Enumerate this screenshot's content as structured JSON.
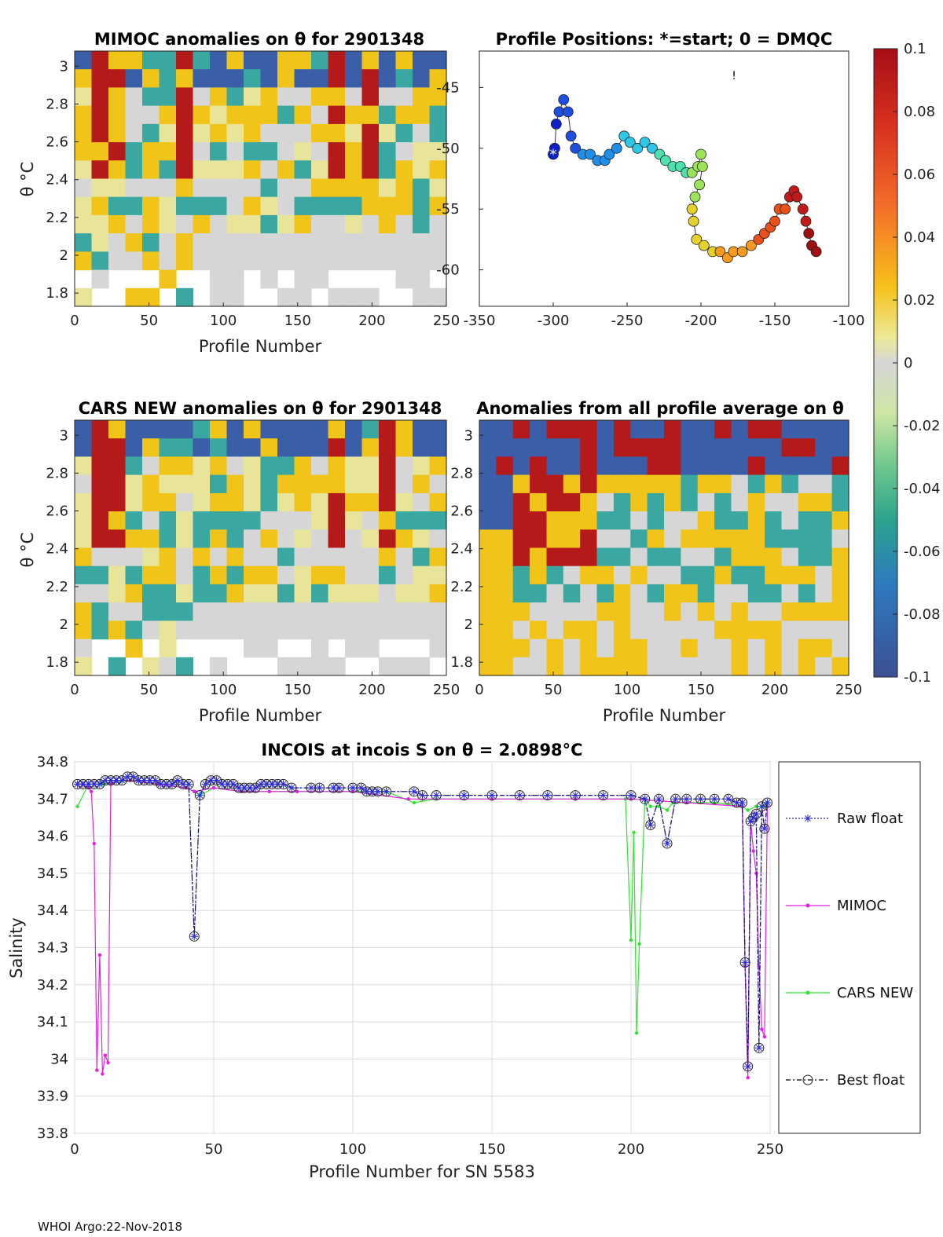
{
  "footer": "WHOI Argo:22-Nov-2018",
  "colors": {
    "high": "#b51a1a",
    "mid_high": "#f0c419",
    "zero": "#d6d6d6",
    "mid_low": "#3aa7a0",
    "low": "#3b5ea8",
    "raw": "#2a2ae0",
    "mimoc": "#e61ee6",
    "cars": "#2ee62e",
    "best": "#000000"
  },
  "chart_data": [
    {
      "id": "mimoc",
      "type": "heatmap",
      "title": "MIMOC anomalies on θ  for 2901348",
      "xlabel": "Profile Number",
      "ylabel": "θ °C",
      "xlim": [
        0,
        250
      ],
      "ylim": [
        1.73,
        3.08
      ],
      "xticks": [
        "0",
        "50",
        "100",
        "150",
        "200",
        "250"
      ],
      "yticks": [
        "1.8",
        "2",
        "2.2",
        "2.4",
        "2.6",
        "2.8",
        "3"
      ]
    },
    {
      "id": "positions",
      "type": "scatter",
      "title": "Profile Positions: *=start; 0 = DMQC",
      "xlim": [
        -350,
        -100
      ],
      "ylim": [
        -63,
        -42
      ],
      "xticks": [
        "-350",
        "-300",
        "-250",
        "-200",
        "-150",
        "-100"
      ],
      "yticks": [
        "-45",
        "-50",
        "-55",
        "-60"
      ],
      "track": [
        [
          -300,
          -50.5
        ],
        [
          -299,
          -50
        ],
        [
          -298,
          -48
        ],
        [
          -296,
          -47
        ],
        [
          -293,
          -46
        ],
        [
          -290,
          -47
        ],
        [
          -288,
          -49
        ],
        [
          -285,
          -50
        ],
        [
          -280,
          -50.5
        ],
        [
          -275,
          -50.5
        ],
        [
          -270,
          -51
        ],
        [
          -265,
          -51
        ],
        [
          -262,
          -50.5
        ],
        [
          -257,
          -50
        ],
        [
          -252,
          -49
        ],
        [
          -248,
          -49.5
        ],
        [
          -243,
          -50
        ],
        [
          -238,
          -49.5
        ],
        [
          -233,
          -50
        ],
        [
          -228,
          -50.5
        ],
        [
          -224,
          -51
        ],
        [
          -219,
          -51.5
        ],
        [
          -214,
          -51.5
        ],
        [
          -210,
          -52
        ],
        [
          -206,
          -52
        ],
        [
          -202,
          -51.5
        ],
        [
          -200,
          -50.5
        ],
        [
          -199,
          -51.5
        ],
        [
          -201,
          -53
        ],
        [
          -204,
          -54
        ],
        [
          -206,
          -55
        ],
        [
          -205,
          -56
        ],
        [
          -203,
          -57.5
        ],
        [
          -198,
          -58
        ],
        [
          -192,
          -58.5
        ],
        [
          -187,
          -58.5
        ],
        [
          -182,
          -59
        ],
        [
          -178,
          -58.5
        ],
        [
          -172,
          -58.5
        ],
        [
          -166,
          -58
        ],
        [
          -161,
          -57.5
        ],
        [
          -157,
          -57
        ],
        [
          -153,
          -56.5
        ],
        [
          -150,
          -56
        ],
        [
          -147,
          -55
        ],
        [
          -143,
          -55
        ],
        [
          -140,
          -54
        ],
        [
          -137,
          -53.5
        ],
        [
          -135,
          -54
        ],
        [
          -131,
          -55
        ],
        [
          -129,
          -56
        ],
        [
          -127,
          -57
        ],
        [
          -125,
          -58
        ],
        [
          -122,
          -58.5
        ]
      ],
      "colorbar": {
        "ticks": [
          "0.1",
          "0.08",
          "0.06",
          "0.04",
          "0.02",
          "0",
          "-0.02",
          "-0.04",
          "-0.06",
          "-0.08",
          "-0.1"
        ]
      }
    },
    {
      "id": "cars",
      "type": "heatmap",
      "title": "CARS NEW anomalies on θ for 2901348",
      "xlabel": "Profile Number",
      "ylabel": "θ °C",
      "xlim": [
        0,
        250
      ],
      "ylim": [
        1.73,
        3.08
      ],
      "xticks": [
        "0",
        "50",
        "100",
        "150",
        "200",
        "250"
      ],
      "yticks": [
        "1.8",
        "2",
        "2.2",
        "2.4",
        "2.6",
        "2.8",
        "3"
      ]
    },
    {
      "id": "allavg",
      "type": "heatmap",
      "title": "Anomalies from all profile average on θ",
      "xlabel": "Profile Number",
      "xlim": [
        0,
        250
      ],
      "ylim": [
        1.73,
        3.08
      ],
      "xticks": [
        "0",
        "50",
        "100",
        "150",
        "200",
        "250"
      ],
      "yticks": [
        "1.8",
        "2",
        "2.2",
        "2.4",
        "2.6",
        "2.8",
        "3"
      ]
    },
    {
      "id": "salinity",
      "type": "line",
      "title_main": "INCOIS at incois S on θ = 2.0898",
      "title_unit": "°C",
      "xlabel": "Profile Number for SN 5583",
      "ylabel": "Salinity",
      "xlim": [
        0,
        250
      ],
      "ylim": [
        33.8,
        34.8
      ],
      "xticks": [
        "0",
        "50",
        "100",
        "150",
        "200",
        "250"
      ],
      "yticks": [
        "33.8",
        "33.9",
        "34",
        "34.1",
        "34.2",
        "34.3",
        "34.4",
        "34.5",
        "34.6",
        "34.7",
        "34.8"
      ],
      "legend": [
        "Raw float",
        "MIMOC",
        "CARS NEW",
        "Best float"
      ],
      "series": [
        {
          "name": "Raw float",
          "x": [
            1,
            3,
            5,
            7,
            9,
            11,
            13,
            15,
            17,
            19,
            21,
            23,
            25,
            27,
            29,
            31,
            33,
            35,
            37,
            39,
            41,
            43,
            45,
            47,
            49,
            51,
            53,
            55,
            57,
            59,
            61,
            63,
            65,
            67,
            69,
            71,
            73,
            75,
            78,
            85,
            88,
            93,
            95,
            100,
            103,
            105,
            107,
            109,
            112,
            122,
            125,
            130,
            140,
            150,
            160,
            170,
            180,
            190,
            200,
            205,
            207,
            210,
            213,
            216,
            220,
            225,
            230,
            235,
            238,
            240,
            241,
            242,
            243,
            244,
            245,
            246,
            247,
            248,
            249
          ],
          "y": [
            34.74,
            34.74,
            34.74,
            34.74,
            34.74,
            34.75,
            34.75,
            34.75,
            34.75,
            34.76,
            34.76,
            34.75,
            34.75,
            34.75,
            34.75,
            34.74,
            34.74,
            34.74,
            34.75,
            34.74,
            34.74,
            34.33,
            34.71,
            34.74,
            34.75,
            34.75,
            34.74,
            34.74,
            34.74,
            34.73,
            34.73,
            34.73,
            34.73,
            34.74,
            34.74,
            34.74,
            34.74,
            34.74,
            34.73,
            34.73,
            34.73,
            34.73,
            34.73,
            34.73,
            34.73,
            34.72,
            34.72,
            34.72,
            34.72,
            34.72,
            34.71,
            34.71,
            34.71,
            34.71,
            34.71,
            34.71,
            34.71,
            34.71,
            34.71,
            34.7,
            34.63,
            34.7,
            34.58,
            34.7,
            34.7,
            34.7,
            34.7,
            34.7,
            34.69,
            34.69,
            34.26,
            33.98,
            34.64,
            34.65,
            34.66,
            34.03,
            34.68,
            34.62,
            34.69
          ]
        },
        {
          "name": "MIMOC",
          "x": [
            1,
            3,
            5,
            6,
            7,
            8,
            9,
            10,
            11,
            12,
            13,
            15,
            20,
            30,
            40,
            43,
            50,
            60,
            70,
            80,
            100,
            120,
            150,
            180,
            200,
            220,
            240,
            241,
            242,
            243,
            244,
            245,
            246,
            247,
            248,
            249
          ],
          "y": [
            34.74,
            34.74,
            34.73,
            34.72,
            34.58,
            33.97,
            34.28,
            33.96,
            34.01,
            33.99,
            34.74,
            34.75,
            34.75,
            34.74,
            34.73,
            34.72,
            34.73,
            34.72,
            34.72,
            34.72,
            34.72,
            34.7,
            34.7,
            34.7,
            34.7,
            34.69,
            34.68,
            34.25,
            33.95,
            34.64,
            34.56,
            34.5,
            34.25,
            34.08,
            34.06,
            34.68
          ]
        },
        {
          "name": "CARS NEW",
          "x": [
            1,
            5,
            10,
            20,
            30,
            40,
            43,
            45,
            50,
            60,
            70,
            80,
            100,
            112,
            122,
            130,
            150,
            180,
            198,
            200,
            201,
            202,
            203,
            205,
            207,
            210,
            213,
            215,
            220,
            230,
            240,
            242,
            245,
            248,
            249
          ],
          "y": [
            34.68,
            34.74,
            34.74,
            34.75,
            34.74,
            34.73,
            34.72,
            34.71,
            34.73,
            34.72,
            34.72,
            34.72,
            34.72,
            34.72,
            34.69,
            34.7,
            34.7,
            34.7,
            34.7,
            34.32,
            34.61,
            34.07,
            34.31,
            34.7,
            34.68,
            34.68,
            34.67,
            34.69,
            34.69,
            34.69,
            34.68,
            34.67,
            34.68,
            34.68,
            34.69
          ]
        },
        {
          "name": "Best float",
          "x": [
            1,
            3,
            5,
            7,
            9,
            11,
            13,
            15,
            17,
            19,
            21,
            23,
            25,
            27,
            29,
            31,
            33,
            35,
            37,
            39,
            41,
            43,
            45,
            47,
            49,
            51,
            53,
            55,
            57,
            59,
            61,
            63,
            65,
            67,
            69,
            71,
            73,
            75,
            78,
            85,
            88,
            93,
            95,
            100,
            103,
            105,
            107,
            109,
            112,
            122,
            125,
            130,
            140,
            150,
            160,
            170,
            180,
            190,
            200,
            205,
            207,
            210,
            213,
            216,
            220,
            225,
            230,
            235,
            238,
            240,
            241,
            242,
            243,
            244,
            245,
            246,
            247,
            248,
            249
          ],
          "y": [
            34.74,
            34.74,
            34.74,
            34.74,
            34.74,
            34.75,
            34.75,
            34.75,
            34.75,
            34.76,
            34.76,
            34.75,
            34.75,
            34.75,
            34.75,
            34.74,
            34.74,
            34.74,
            34.75,
            34.74,
            34.74,
            34.33,
            34.71,
            34.74,
            34.75,
            34.75,
            34.74,
            34.74,
            34.74,
            34.73,
            34.73,
            34.73,
            34.73,
            34.74,
            34.74,
            34.74,
            34.74,
            34.74,
            34.73,
            34.73,
            34.73,
            34.73,
            34.73,
            34.73,
            34.73,
            34.72,
            34.72,
            34.72,
            34.72,
            34.72,
            34.71,
            34.71,
            34.71,
            34.71,
            34.71,
            34.71,
            34.71,
            34.71,
            34.71,
            34.7,
            34.63,
            34.7,
            34.58,
            34.7,
            34.7,
            34.7,
            34.7,
            34.7,
            34.69,
            34.69,
            34.26,
            33.98,
            34.64,
            34.65,
            34.66,
            34.03,
            34.68,
            34.62,
            34.69
          ]
        }
      ]
    }
  ]
}
